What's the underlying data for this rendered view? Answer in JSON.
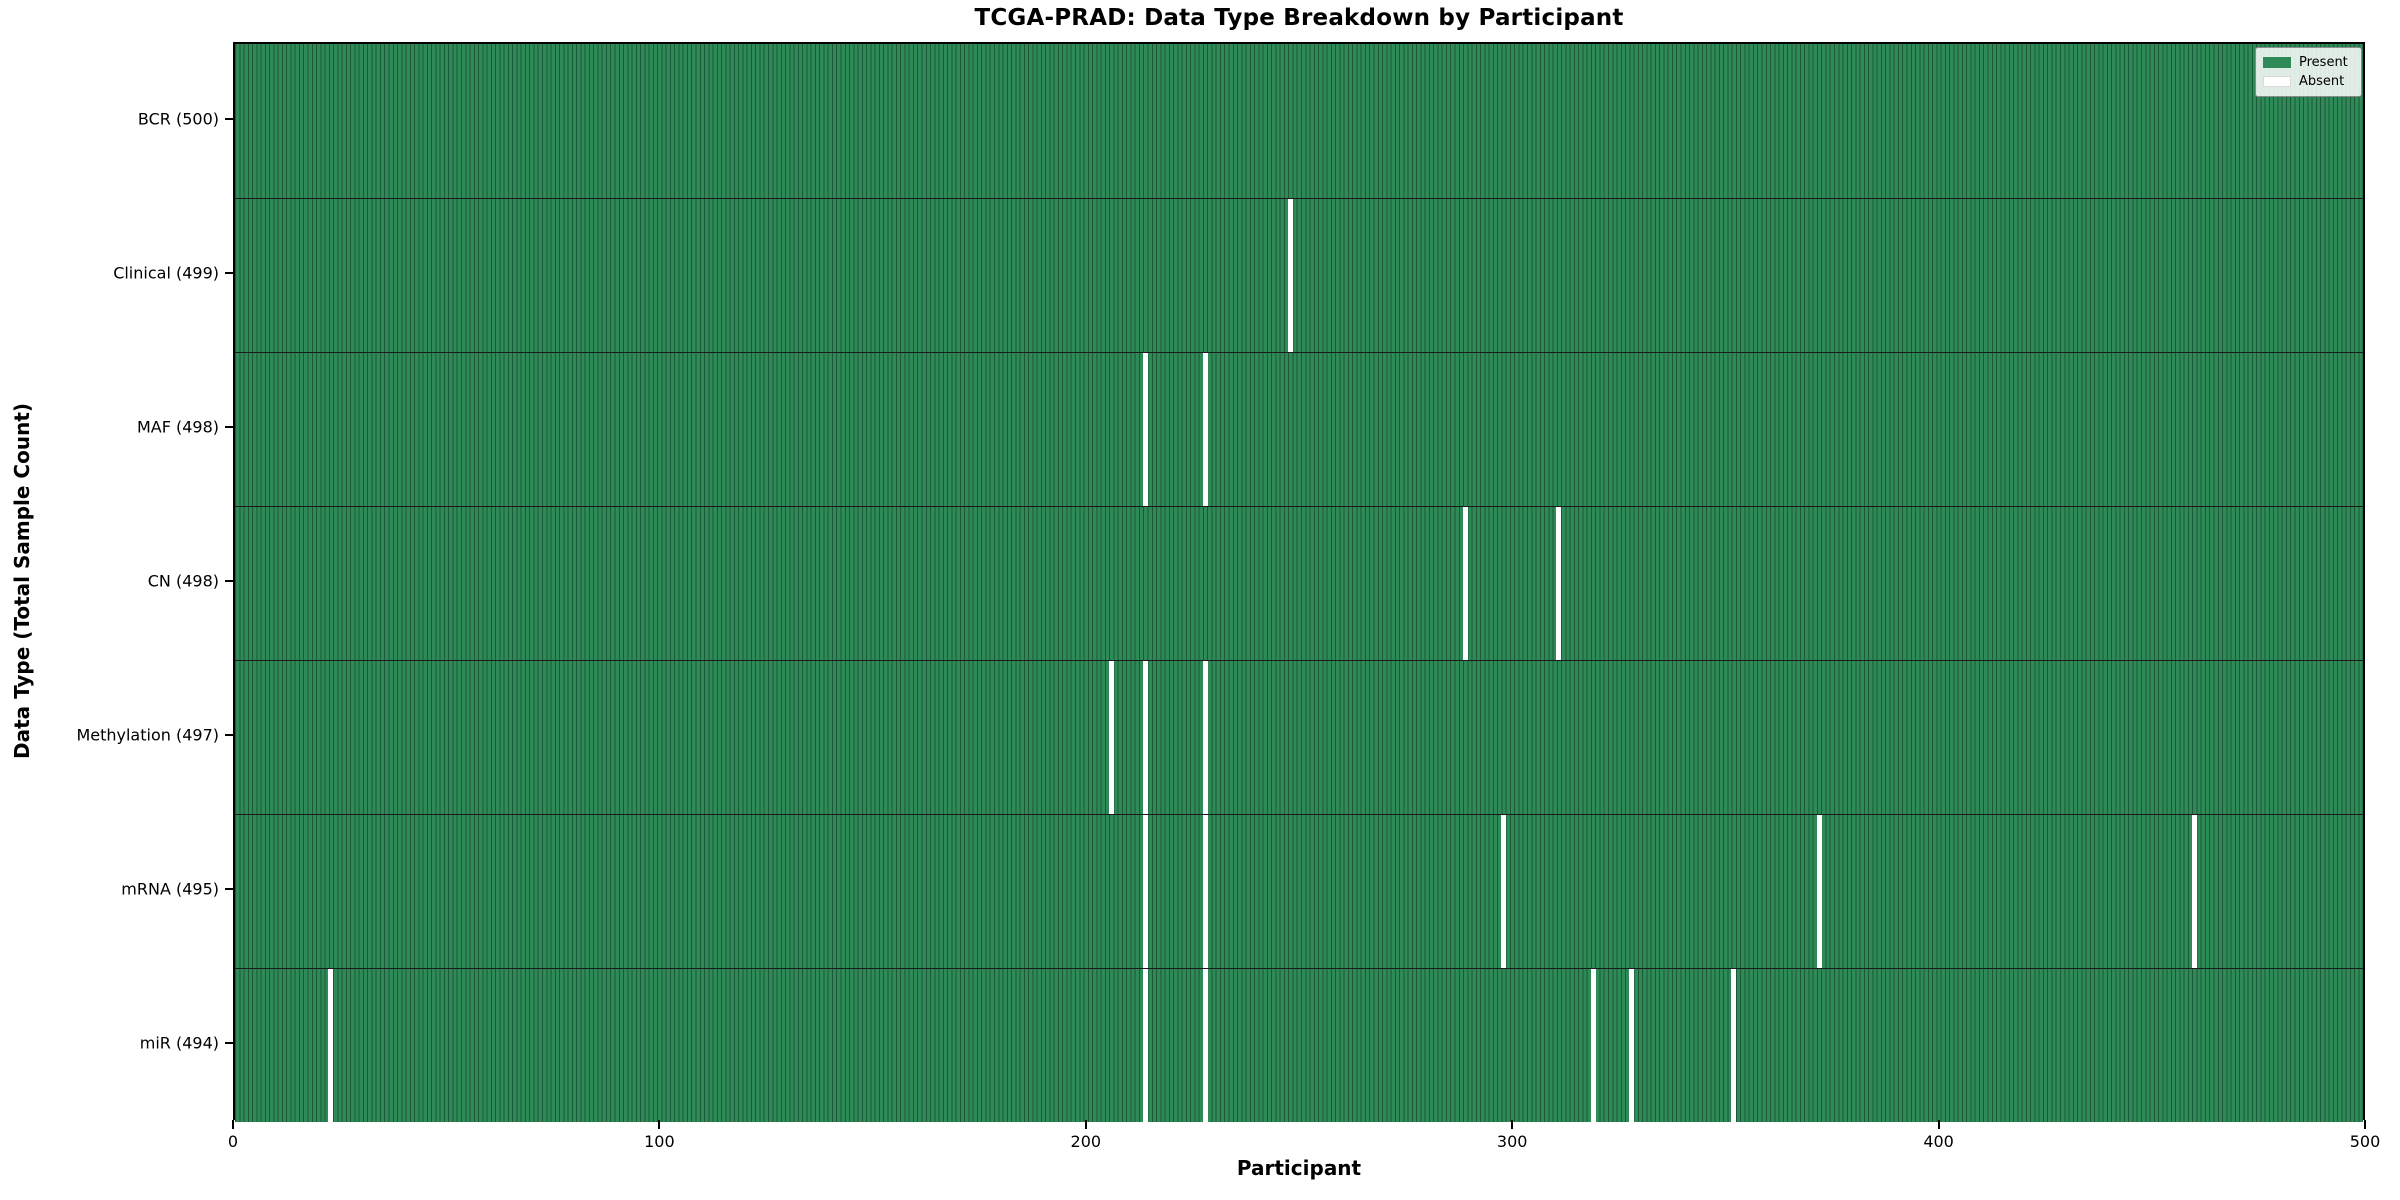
{
  "title": "TCGA-PRAD: Data Type Breakdown by Participant",
  "xlabel": "Participant",
  "ylabel": "Data Type (Total Sample Count)",
  "legend": {
    "present_label": "Present",
    "absent_label": "Absent"
  },
  "colors": {
    "present": "#2e8b57",
    "absent": "#ffffff"
  },
  "chart_data": {
    "type": "heatmap",
    "title": "TCGA-PRAD: Data Type Breakdown by Participant",
    "xlabel": "Participant",
    "ylabel": "Data Type (Total Sample Count)",
    "x_range": [
      0,
      500
    ],
    "x_ticks": [
      0,
      100,
      200,
      300,
      400,
      500
    ],
    "n_participants": 500,
    "legend_position": "upper right",
    "cell_states": [
      "Present",
      "Absent"
    ],
    "rows": [
      {
        "label": "BCR (500)",
        "data_type": "BCR",
        "total_sample_count": 500,
        "absent_participants": []
      },
      {
        "label": "Clinical (499)",
        "data_type": "Clinical",
        "total_sample_count": 499,
        "absent_participants": [
          247
        ]
      },
      {
        "label": "MAF (498)",
        "data_type": "MAF",
        "total_sample_count": 498,
        "absent_participants": [
          213,
          227
        ]
      },
      {
        "label": "CN (498)",
        "data_type": "CN",
        "total_sample_count": 498,
        "absent_participants": [
          288,
          310
        ]
      },
      {
        "label": "Methylation (497)",
        "data_type": "Methylation",
        "total_sample_count": 497,
        "absent_participants": [
          205,
          213,
          227
        ]
      },
      {
        "label": "mRNA (495)",
        "data_type": "mRNA",
        "total_sample_count": 495,
        "absent_participants": [
          213,
          227,
          297,
          371,
          459
        ]
      },
      {
        "label": "miR (494)",
        "data_type": "miR",
        "total_sample_count": 494,
        "absent_participants": [
          22,
          213,
          227,
          318,
          327,
          351
        ]
      }
    ]
  }
}
